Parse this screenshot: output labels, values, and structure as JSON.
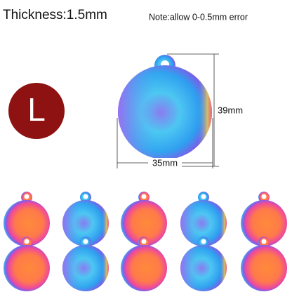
{
  "header": {
    "title": "Thickness:1.5mm",
    "note": "Note:allow 0-0.5mm error"
  },
  "size_badge": "L",
  "dimensions": {
    "height": "39mm",
    "width": "35mm"
  }
}
